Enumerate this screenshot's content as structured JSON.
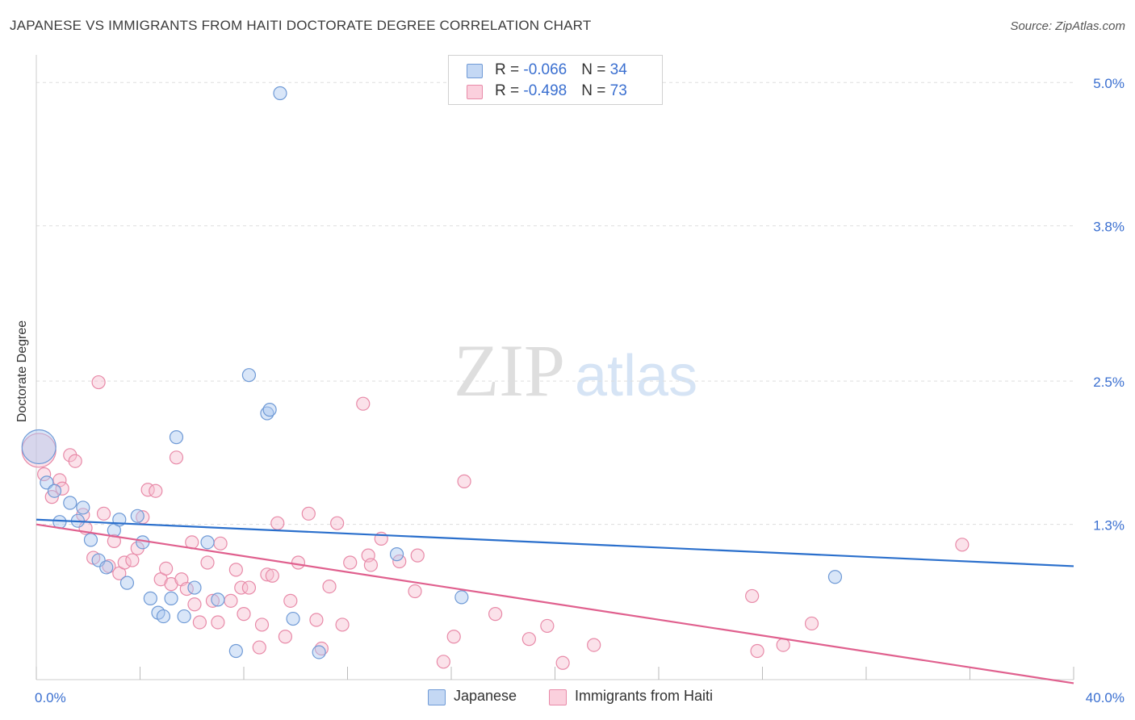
{
  "title": "JAPANESE VS IMMIGRANTS FROM HAITI DOCTORATE DEGREE CORRELATION CHART",
  "source": "Source: ZipAtlas.com",
  "watermark": {
    "zip": "ZIP",
    "atlas": "atlas"
  },
  "legend_top": [
    {
      "r_label": "R = ",
      "r_value": "-0.066",
      "n_label": "N = ",
      "n_value": "34"
    },
    {
      "r_label": "R = ",
      "r_value": "-0.498",
      "n_label": "N = ",
      "n_value": "73"
    }
  ],
  "legend_bottom": [
    "Japanese",
    "Immigrants from Haiti"
  ],
  "colors": {
    "japanese_fill": "#aac8f0",
    "japanese_stroke": "#6f9ad6",
    "japanese_line": "#2a6fcc",
    "haiti_fill": "#f7bfd0",
    "haiti_stroke": "#e88aa8",
    "haiti_line": "#e0608e",
    "tick_blue": "#3a6fd0",
    "grid": "#dddddd"
  },
  "chart_data": {
    "type": "scatter",
    "title": "JAPANESE VS IMMIGRANTS FROM HAITI DOCTORATE DEGREE CORRELATION CHART",
    "xlabel": "",
    "ylabel": "Doctorate Degree",
    "xlim": [
      0,
      40
    ],
    "ylim": [
      0,
      5.15
    ],
    "x_tick_labels": [
      {
        "value": 0,
        "label": "0.0%"
      },
      {
        "value": 40,
        "label": "40.0%"
      }
    ],
    "y_tick_labels": [
      {
        "value": 1.3,
        "label": "1.3%"
      },
      {
        "value": 2.5,
        "label": "2.5%"
      },
      {
        "value": 3.8,
        "label": "3.8%"
      },
      {
        "value": 5.0,
        "label": "5.0%"
      }
    ],
    "series": [
      {
        "name": "Japanese",
        "R": -0.066,
        "N": 34,
        "trend": {
          "x": [
            0,
            40
          ],
          "y": [
            1.34,
            0.95
          ]
        },
        "points": [
          {
            "x": 0.1,
            "y": 1.95,
            "big": true
          },
          {
            "x": 0.4,
            "y": 1.65
          },
          {
            "x": 0.7,
            "y": 1.58
          },
          {
            "x": 0.9,
            "y": 1.32
          },
          {
            "x": 1.3,
            "y": 1.48
          },
          {
            "x": 1.6,
            "y": 1.33
          },
          {
            "x": 1.8,
            "y": 1.44
          },
          {
            "x": 2.1,
            "y": 1.17
          },
          {
            "x": 2.4,
            "y": 1.0
          },
          {
            "x": 2.7,
            "y": 0.94
          },
          {
            "x": 3.0,
            "y": 1.25
          },
          {
            "x": 3.2,
            "y": 1.34
          },
          {
            "x": 3.5,
            "y": 0.81
          },
          {
            "x": 3.9,
            "y": 1.37
          },
          {
            "x": 4.1,
            "y": 1.15
          },
          {
            "x": 4.4,
            "y": 0.68
          },
          {
            "x": 4.7,
            "y": 0.56
          },
          {
            "x": 4.9,
            "y": 0.53
          },
          {
            "x": 5.2,
            "y": 0.68
          },
          {
            "x": 5.4,
            "y": 2.03
          },
          {
            "x": 5.7,
            "y": 0.53
          },
          {
            "x": 6.1,
            "y": 0.77
          },
          {
            "x": 6.6,
            "y": 1.15
          },
          {
            "x": 7.0,
            "y": 0.67
          },
          {
            "x": 7.7,
            "y": 0.24
          },
          {
            "x": 8.2,
            "y": 2.55
          },
          {
            "x": 8.9,
            "y": 2.23
          },
          {
            "x": 9.0,
            "y": 2.26
          },
          {
            "x": 9.4,
            "y": 4.91
          },
          {
            "x": 9.9,
            "y": 0.51
          },
          {
            "x": 10.9,
            "y": 0.23
          },
          {
            "x": 13.9,
            "y": 1.05
          },
          {
            "x": 16.4,
            "y": 0.69
          },
          {
            "x": 30.8,
            "y": 0.86
          }
        ]
      },
      {
        "name": "Immigrants from Haiti",
        "R": -0.498,
        "N": 73,
        "trend": {
          "x": [
            0,
            40
          ],
          "y": [
            1.3,
            -0.03
          ]
        },
        "points": [
          {
            "x": 0.1,
            "y": 1.92,
            "big": true
          },
          {
            "x": 0.3,
            "y": 1.72
          },
          {
            "x": 0.6,
            "y": 1.53
          },
          {
            "x": 0.9,
            "y": 1.67
          },
          {
            "x": 1.0,
            "y": 1.6
          },
          {
            "x": 1.3,
            "y": 1.88
          },
          {
            "x": 1.5,
            "y": 1.83
          },
          {
            "x": 1.8,
            "y": 1.38
          },
          {
            "x": 1.9,
            "y": 1.27
          },
          {
            "x": 2.2,
            "y": 1.02
          },
          {
            "x": 2.4,
            "y": 2.49
          },
          {
            "x": 2.6,
            "y": 1.39
          },
          {
            "x": 2.8,
            "y": 0.95
          },
          {
            "x": 3.0,
            "y": 1.16
          },
          {
            "x": 3.2,
            "y": 0.89
          },
          {
            "x": 3.4,
            "y": 0.98
          },
          {
            "x": 3.7,
            "y": 1.0
          },
          {
            "x": 3.9,
            "y": 1.1
          },
          {
            "x": 4.1,
            "y": 1.36
          },
          {
            "x": 4.3,
            "y": 1.59
          },
          {
            "x": 4.6,
            "y": 1.58
          },
          {
            "x": 4.8,
            "y": 0.84
          },
          {
            "x": 5.0,
            "y": 0.93
          },
          {
            "x": 5.2,
            "y": 0.8
          },
          {
            "x": 5.4,
            "y": 1.86
          },
          {
            "x": 5.6,
            "y": 0.84
          },
          {
            "x": 5.8,
            "y": 0.76
          },
          {
            "x": 6.0,
            "y": 1.15
          },
          {
            "x": 6.1,
            "y": 0.63
          },
          {
            "x": 6.3,
            "y": 0.48
          },
          {
            "x": 6.6,
            "y": 0.98
          },
          {
            "x": 6.8,
            "y": 0.66
          },
          {
            "x": 7.0,
            "y": 0.48
          },
          {
            "x": 7.1,
            "y": 1.14
          },
          {
            "x": 7.5,
            "y": 0.66
          },
          {
            "x": 7.7,
            "y": 0.92
          },
          {
            "x": 7.9,
            "y": 0.77
          },
          {
            "x": 8.0,
            "y": 0.55
          },
          {
            "x": 8.2,
            "y": 0.77
          },
          {
            "x": 8.6,
            "y": 0.27
          },
          {
            "x": 8.7,
            "y": 0.46
          },
          {
            "x": 8.9,
            "y": 0.88
          },
          {
            "x": 9.1,
            "y": 0.87
          },
          {
            "x": 9.3,
            "y": 1.31
          },
          {
            "x": 9.6,
            "y": 0.36
          },
          {
            "x": 9.8,
            "y": 0.66
          },
          {
            "x": 10.1,
            "y": 0.98
          },
          {
            "x": 10.5,
            "y": 1.39
          },
          {
            "x": 10.8,
            "y": 0.5
          },
          {
            "x": 11.0,
            "y": 0.26
          },
          {
            "x": 11.3,
            "y": 0.78
          },
          {
            "x": 11.6,
            "y": 1.31
          },
          {
            "x": 11.8,
            "y": 0.46
          },
          {
            "x": 12.1,
            "y": 0.98
          },
          {
            "x": 12.6,
            "y": 2.31
          },
          {
            "x": 12.8,
            "y": 1.04
          },
          {
            "x": 12.9,
            "y": 0.96
          },
          {
            "x": 13.3,
            "y": 1.18
          },
          {
            "x": 14.0,
            "y": 0.99
          },
          {
            "x": 14.6,
            "y": 0.74
          },
          {
            "x": 14.7,
            "y": 1.04
          },
          {
            "x": 15.7,
            "y": 0.15
          },
          {
            "x": 16.1,
            "y": 0.36
          },
          {
            "x": 16.5,
            "y": 1.66
          },
          {
            "x": 17.7,
            "y": 0.55
          },
          {
            "x": 19.0,
            "y": 0.34
          },
          {
            "x": 19.7,
            "y": 0.45
          },
          {
            "x": 20.3,
            "y": 0.14
          },
          {
            "x": 21.5,
            "y": 0.29
          },
          {
            "x": 27.6,
            "y": 0.7
          },
          {
            "x": 27.8,
            "y": 0.24
          },
          {
            "x": 28.8,
            "y": 0.29
          },
          {
            "x": 29.9,
            "y": 0.47
          },
          {
            "x": 35.7,
            "y": 1.13
          }
        ]
      }
    ]
  }
}
